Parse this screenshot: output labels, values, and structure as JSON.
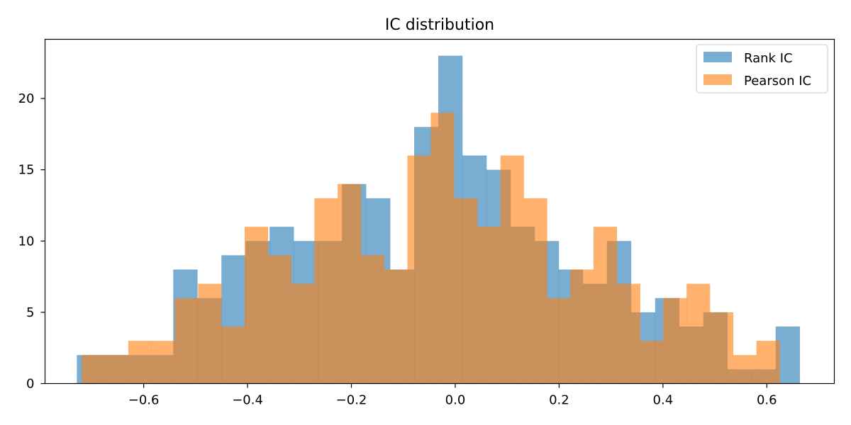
{
  "chart_data": {
    "type": "bar",
    "title": "IC distribution",
    "xlabel": "",
    "ylabel": "",
    "xlim": [
      -0.79,
      0.73
    ],
    "ylim": [
      0,
      24.15
    ],
    "x_ticks": [
      "−0.6",
      "−0.4",
      "−0.2",
      "0.0",
      "0.2",
      "0.4",
      "0.6"
    ],
    "x_tick_values": [
      -0.6,
      -0.4,
      -0.2,
      0.0,
      0.2,
      0.4,
      0.6
    ],
    "y_ticks": [
      "0",
      "5",
      "10",
      "15",
      "20"
    ],
    "y_tick_values": [
      0,
      5,
      10,
      15,
      20
    ],
    "grid": false,
    "legend_position": "top-right",
    "series": [
      {
        "name": "Rank IC",
        "color": "#1f77b4",
        "opacity": 0.6,
        "bin_edges": [
          -0.7287,
          -0.6823,
          -0.6359,
          -0.5895,
          -0.5431,
          -0.4967,
          -0.4503,
          -0.4039,
          -0.3575,
          -0.3111,
          -0.2647,
          -0.2183,
          -0.1719,
          -0.1255,
          -0.0791,
          -0.0327,
          0.0137,
          0.0601,
          0.1065,
          0.1529,
          0.1993,
          0.2457,
          0.2921,
          0.3385,
          0.3849,
          0.4313,
          0.4777,
          0.5241,
          0.5705,
          0.6169,
          0.6633
        ],
        "values": [
          2,
          2,
          2,
          2,
          8,
          6,
          9,
          10,
          11,
          10,
          10,
          14,
          13,
          8,
          18,
          23,
          16,
          15,
          11,
          10,
          8,
          7,
          10,
          5,
          6,
          4,
          5,
          1,
          1,
          4
        ]
      },
      {
        "name": "Pearson IC",
        "color": "#ff7f0e",
        "opacity": 0.6,
        "bin_edges": [
          -0.7193,
          -0.6745,
          -0.6297,
          -0.5849,
          -0.5401,
          -0.4953,
          -0.4505,
          -0.4057,
          -0.3609,
          -0.3161,
          -0.2713,
          -0.2265,
          -0.1817,
          -0.1369,
          -0.0921,
          -0.0473,
          -0.0025,
          0.0423,
          0.0871,
          0.1319,
          0.1767,
          0.2215,
          0.2663,
          0.3111,
          0.3559,
          0.4007,
          0.4455,
          0.4903,
          0.5351,
          0.5799,
          0.6247
        ],
        "values": [
          2,
          2,
          3,
          3,
          6,
          7,
          4,
          11,
          9,
          7,
          13,
          14,
          9,
          8,
          16,
          19,
          13,
          11,
          16,
          13,
          6,
          8,
          11,
          7,
          3,
          6,
          7,
          5,
          2,
          3
        ]
      }
    ]
  }
}
